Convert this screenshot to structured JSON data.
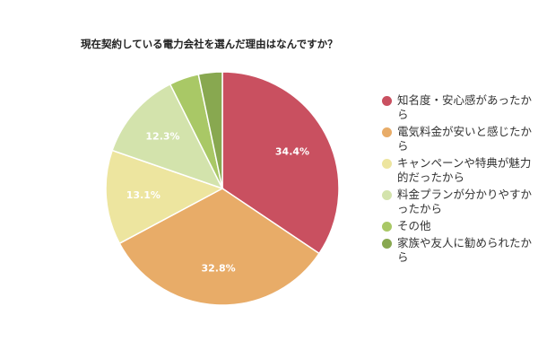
{
  "chart_data": {
    "type": "pie",
    "title": "現在契約している電力会社を選んだ理由はなんですか？",
    "legend_position": "right",
    "series": [
      {
        "name": "知名度・安心感があったから",
        "value": 34.4,
        "label": "34.4%",
        "color": "#c95060"
      },
      {
        "name": "電気料金が安いと感じたから",
        "value": 32.8,
        "label": "32.8%",
        "color": "#e8ac68"
      },
      {
        "name": "キャンペーンや特典が魅力的だったから",
        "value": 13.1,
        "label": "13.1%",
        "color": "#ede59f"
      },
      {
        "name": "料金プランが分かりやすかったから",
        "value": 12.3,
        "label": "12.3%",
        "color": "#d3e3ac"
      },
      {
        "name": "その他",
        "value": 4.1,
        "label": "",
        "color": "#a9c866"
      },
      {
        "name": "家族や友人に勧められたから",
        "value": 3.3,
        "label": "",
        "color": "#88a850"
      }
    ]
  }
}
